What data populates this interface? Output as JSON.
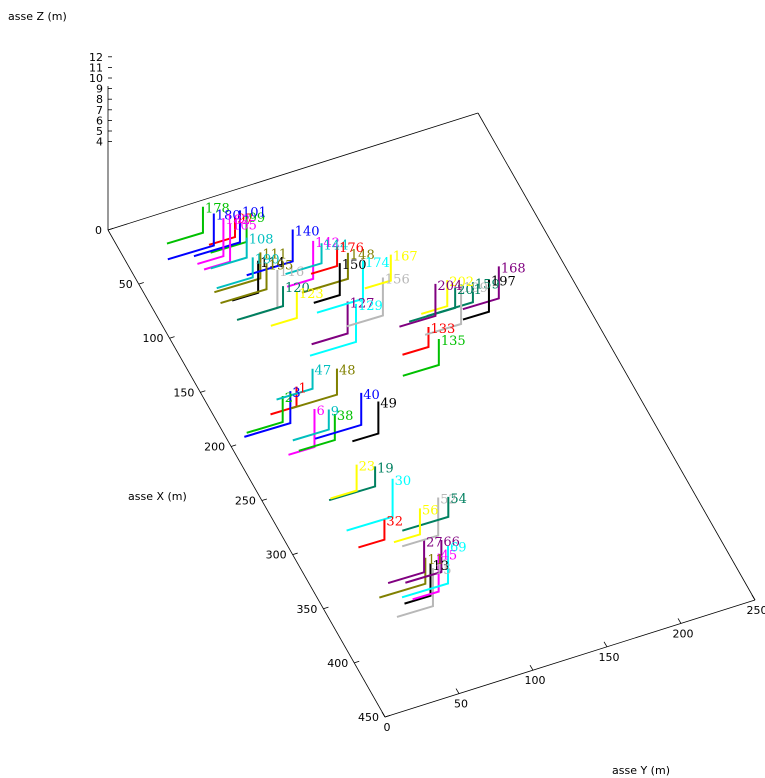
{
  "chart_data": {
    "type": "line",
    "title": "",
    "x_label": "asse X (m)",
    "y_label": "asse Y (m)",
    "z_label": "asse Z (m)",
    "x_range": [
      0,
      450
    ],
    "y_range": [
      0,
      250
    ],
    "z_range": [
      4,
      12
    ],
    "x_ticks": [
      "0",
      "50",
      "100",
      "150",
      "200",
      "250",
      "300",
      "350",
      "400",
      "450"
    ],
    "y_ticks": [
      "0",
      "50",
      "100",
      "150",
      "200",
      "250"
    ],
    "z_ticks": [
      "4",
      "5",
      "6",
      "7",
      "8",
      "9",
      "10",
      "11",
      "12"
    ],
    "grid": false,
    "legend": "none",
    "palette": [
      "#ff0000",
      "#00c000",
      "#0000ff",
      "#ff00ff",
      "#00bfbf",
      "#808000",
      "#000000",
      "#b8b8b8",
      "#008060",
      "#ffff00",
      "#800080",
      "#00ffff"
    ],
    "labels": [
      {
        "text": "1",
        "x": 174,
        "y": 55
      },
      {
        "text": "2",
        "x": 178,
        "y": 44
      },
      {
        "text": "3",
        "x": 176,
        "y": 50
      },
      {
        "text": "6",
        "x": 196,
        "y": 58
      },
      {
        "text": "9",
        "x": 200,
        "y": 66
      },
      {
        "text": "11",
        "x": 340,
        "y": 73
      },
      {
        "text": "13",
        "x": 346,
        "y": 74
      },
      {
        "text": "15",
        "x": 350,
        "y": 74
      },
      {
        "text": "19",
        "x": 256,
        "y": 74
      },
      {
        "text": "23",
        "x": 250,
        "y": 64
      },
      {
        "text": "27",
        "x": 326,
        "y": 78
      },
      {
        "text": "30",
        "x": 270,
        "y": 80
      },
      {
        "text": "32",
        "x": 300,
        "y": 62
      },
      {
        "text": "38",
        "x": 205,
        "y": 68
      },
      {
        "text": "40",
        "x": 195,
        "y": 90
      },
      {
        "text": "45",
        "x": 340,
        "y": 82
      },
      {
        "text": "47",
        "x": 164,
        "y": 70
      },
      {
        "text": "48",
        "x": 170,
        "y": 84
      },
      {
        "text": "49",
        "x": 206,
        "y": 97
      },
      {
        "text": "52",
        "x": 296,
        "y": 100
      },
      {
        "text": "54",
        "x": 298,
        "y": 106
      },
      {
        "text": "56",
        "x": 300,
        "y": 86
      },
      {
        "text": "66",
        "x": 330,
        "y": 88
      },
      {
        "text": "69",
        "x": 336,
        "y": 90
      },
      {
        "text": "97",
        "x": 26,
        "y": 75
      },
      {
        "text": "99",
        "x": 28,
        "y": 82
      },
      {
        "text": "101",
        "x": 22,
        "y": 80
      },
      {
        "text": "105",
        "x": 30,
        "y": 70
      },
      {
        "text": "108",
        "x": 45,
        "y": 75
      },
      {
        "text": "111",
        "x": 60,
        "y": 78
      },
      {
        "text": "114",
        "x": 66,
        "y": 74
      },
      {
        "text": "116",
        "x": 78,
        "y": 82
      },
      {
        "text": "120",
        "x": 92,
        "y": 80
      },
      {
        "text": "123",
        "x": 100,
        "y": 86
      },
      {
        "text": "127",
        "x": 120,
        "y": 112
      },
      {
        "text": "129",
        "x": 124,
        "y": 116
      },
      {
        "text": "133",
        "x": 160,
        "y": 150
      },
      {
        "text": "135",
        "x": 172,
        "y": 152
      },
      {
        "text": "140",
        "x": 50,
        "y": 104
      },
      {
        "text": "142",
        "x": 64,
        "y": 112
      },
      {
        "text": "144",
        "x": 68,
        "y": 116
      },
      {
        "text": "148",
        "x": 82,
        "y": 128
      },
      {
        "text": "150",
        "x": 88,
        "y": 120
      },
      {
        "text": "156",
        "x": 110,
        "y": 140
      },
      {
        "text": "159",
        "x": 136,
        "y": 190
      },
      {
        "text": "167",
        "x": 94,
        "y": 152
      },
      {
        "text": "168",
        "x": 130,
        "y": 210
      },
      {
        "text": "174",
        "x": 92,
        "y": 134
      },
      {
        "text": "176",
        "x": 74,
        "y": 124
      },
      {
        "text": "178",
        "x": 10,
        "y": 60
      },
      {
        "text": "180",
        "x": 18,
        "y": 64
      },
      {
        "text": "182",
        "x": 24,
        "y": 68
      },
      {
        "text": "190",
        "x": 62,
        "y": 72
      },
      {
        "text": "195",
        "x": 70,
        "y": 78
      },
      {
        "text": "197",
        "x": 138,
        "y": 200
      },
      {
        "text": "199",
        "x": 136,
        "y": 182
      },
      {
        "text": "201",
        "x": 136,
        "y": 178
      },
      {
        "text": "202",
        "x": 128,
        "y": 176
      },
      {
        "text": "204",
        "x": 128,
        "y": 168
      }
    ]
  }
}
